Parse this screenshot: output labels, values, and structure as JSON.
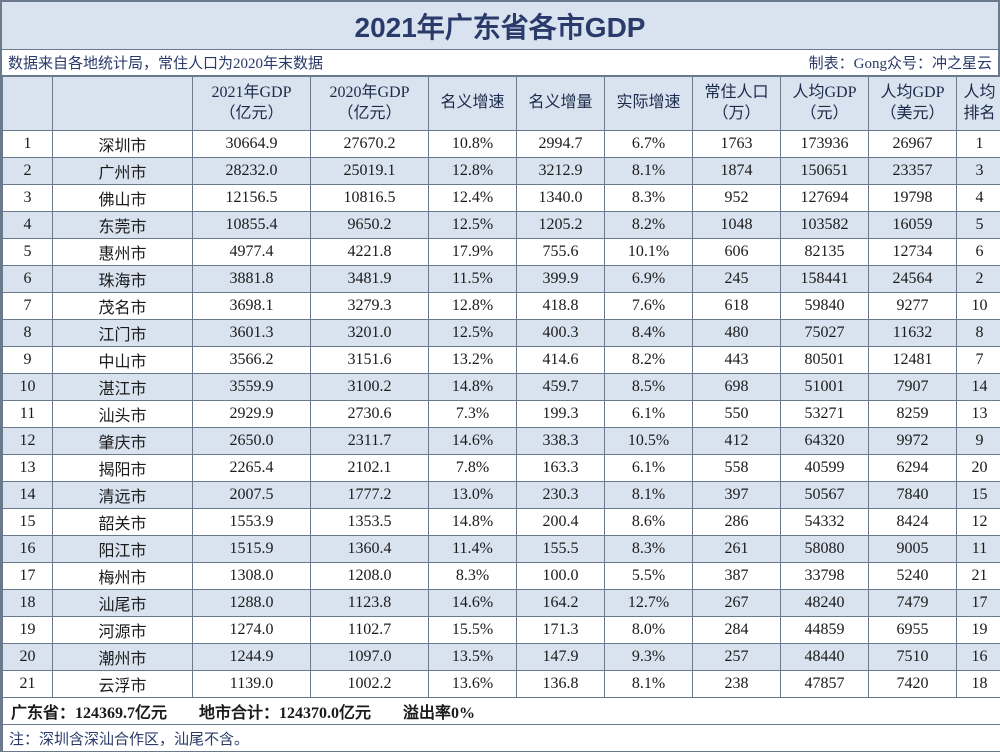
{
  "title": "2021年广东省各市GDP",
  "source_left": "数据来自各地统计局，常住人口为2020年末数据",
  "source_right": "制表：Gong众号：冲之星云",
  "colors": {
    "header_bg": "#d9e3ef",
    "border": "#6a7a8c",
    "title_text": "#2a3a6a",
    "zebra_bg": "#d9e3ef"
  },
  "columns": [
    {
      "l1": "",
      "l2": ""
    },
    {
      "l1": "",
      "l2": ""
    },
    {
      "l1": "2021年GDP",
      "l2": "（亿元）"
    },
    {
      "l1": "2020年GDP",
      "l2": "（亿元）"
    },
    {
      "l1": "名义增速",
      "l2": ""
    },
    {
      "l1": "名义增量",
      "l2": ""
    },
    {
      "l1": "实际增速",
      "l2": ""
    },
    {
      "l1": "常住人口",
      "l2": "（万）"
    },
    {
      "l1": "人均GDP",
      "l2": "（元）"
    },
    {
      "l1": "人均GDP",
      "l2": "（美元）"
    },
    {
      "l1": "人均",
      "l2": "排名"
    }
  ],
  "rows": [
    [
      "1",
      "深圳市",
      "30664.9",
      "27670.2",
      "10.8%",
      "2994.7",
      "6.7%",
      "1763",
      "173936",
      "26967",
      "1"
    ],
    [
      "2",
      "广州市",
      "28232.0",
      "25019.1",
      "12.8%",
      "3212.9",
      "8.1%",
      "1874",
      "150651",
      "23357",
      "3"
    ],
    [
      "3",
      "佛山市",
      "12156.5",
      "10816.5",
      "12.4%",
      "1340.0",
      "8.3%",
      "952",
      "127694",
      "19798",
      "4"
    ],
    [
      "4",
      "东莞市",
      "10855.4",
      "9650.2",
      "12.5%",
      "1205.2",
      "8.2%",
      "1048",
      "103582",
      "16059",
      "5"
    ],
    [
      "5",
      "惠州市",
      "4977.4",
      "4221.8",
      "17.9%",
      "755.6",
      "10.1%",
      "606",
      "82135",
      "12734",
      "6"
    ],
    [
      "6",
      "珠海市",
      "3881.8",
      "3481.9",
      "11.5%",
      "399.9",
      "6.9%",
      "245",
      "158441",
      "24564",
      "2"
    ],
    [
      "7",
      "茂名市",
      "3698.1",
      "3279.3",
      "12.8%",
      "418.8",
      "7.6%",
      "618",
      "59840",
      "9277",
      "10"
    ],
    [
      "8",
      "江门市",
      "3601.3",
      "3201.0",
      "12.5%",
      "400.3",
      "8.4%",
      "480",
      "75027",
      "11632",
      "8"
    ],
    [
      "9",
      "中山市",
      "3566.2",
      "3151.6",
      "13.2%",
      "414.6",
      "8.2%",
      "443",
      "80501",
      "12481",
      "7"
    ],
    [
      "10",
      "湛江市",
      "3559.9",
      "3100.2",
      "14.8%",
      "459.7",
      "8.5%",
      "698",
      "51001",
      "7907",
      "14"
    ],
    [
      "11",
      "汕头市",
      "2929.9",
      "2730.6",
      "7.3%",
      "199.3",
      "6.1%",
      "550",
      "53271",
      "8259",
      "13"
    ],
    [
      "12",
      "肇庆市",
      "2650.0",
      "2311.7",
      "14.6%",
      "338.3",
      "10.5%",
      "412",
      "64320",
      "9972",
      "9"
    ],
    [
      "13",
      "揭阳市",
      "2265.4",
      "2102.1",
      "7.8%",
      "163.3",
      "6.1%",
      "558",
      "40599",
      "6294",
      "20"
    ],
    [
      "14",
      "清远市",
      "2007.5",
      "1777.2",
      "13.0%",
      "230.3",
      "8.1%",
      "397",
      "50567",
      "7840",
      "15"
    ],
    [
      "15",
      "韶关市",
      "1553.9",
      "1353.5",
      "14.8%",
      "200.4",
      "8.6%",
      "286",
      "54332",
      "8424",
      "12"
    ],
    [
      "16",
      "阳江市",
      "1515.9",
      "1360.4",
      "11.4%",
      "155.5",
      "8.3%",
      "261",
      "58080",
      "9005",
      "11"
    ],
    [
      "17",
      "梅州市",
      "1308.0",
      "1208.0",
      "8.3%",
      "100.0",
      "5.5%",
      "387",
      "33798",
      "5240",
      "21"
    ],
    [
      "18",
      "汕尾市",
      "1288.0",
      "1123.8",
      "14.6%",
      "164.2",
      "12.7%",
      "267",
      "48240",
      "7479",
      "17"
    ],
    [
      "19",
      "河源市",
      "1274.0",
      "1102.7",
      "15.5%",
      "171.3",
      "8.0%",
      "284",
      "44859",
      "6955",
      "19"
    ],
    [
      "20",
      "潮州市",
      "1244.9",
      "1097.0",
      "13.5%",
      "147.9",
      "9.3%",
      "257",
      "48440",
      "7510",
      "16"
    ],
    [
      "21",
      "云浮市",
      "1139.0",
      "1002.2",
      "13.6%",
      "136.8",
      "8.1%",
      "238",
      "47857",
      "7420",
      "18"
    ]
  ],
  "summary": "广东省：124369.7亿元　　地市合计：124370.0亿元　　溢出率0%",
  "footnote": "注：深圳含深汕合作区，汕尾不含。"
}
